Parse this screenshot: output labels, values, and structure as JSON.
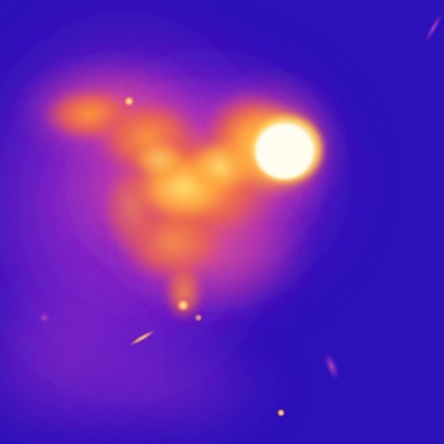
{
  "image": {
    "kind": "thermal-camera-frame",
    "palette": "ironbow",
    "colors": {
      "background_cold": "#2a10b8",
      "background_mid": "#4a14c0",
      "haze_magenta": "#9a2ad0",
      "warm_pink": "#d84aa8",
      "warm_orange": "#f07a3a",
      "hot_yellow": "#ffd050",
      "hottest_white": "#fffbe8"
    },
    "features": [
      "hot-core",
      "heat-plume",
      "ember-particles",
      "ambient-haze"
    ]
  }
}
